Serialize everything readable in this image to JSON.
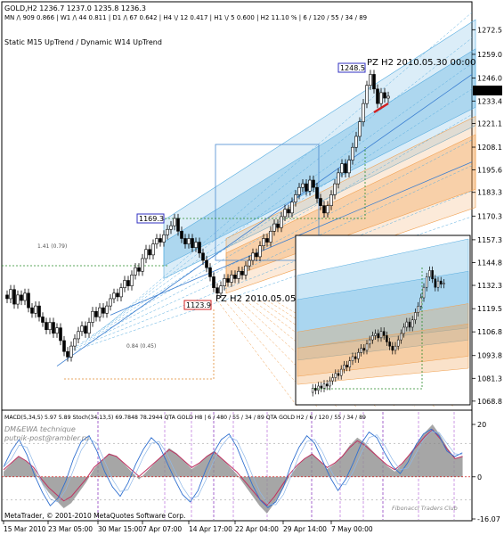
{
  "header": {
    "line1": "GOLD,H2  1236.7 1237.0 1235.8 1236.3",
    "line2": "MN /\\ 909  0.866 | W1 /\\ 44  0.811 | D1 /\\ 67  0.642 | H4 \\/ 12  0.417 | H1 \\/ 5  0.600 | H2  11.10 % | 6 / 120 / 55 / 34 / 89",
    "line3": "Static  M15  UpTrend  /  Dynamic  W14  UpTrend"
  },
  "price_tags": {
    "high": "1248.5",
    "mid": "1169.3",
    "low": "1123.9",
    "current": "1236.3"
  },
  "pz_labels": {
    "upper": "PZ H2  2010.05.30 00:00",
    "lower": "PZ H2  2010.05.05"
  },
  "fib_labels": {
    "upper": "1.41 (0.79)",
    "lower": "0.84 (0.45)"
  },
  "indicator_header": "MACD(5,34,5) 5.97 5.89  Stoch(34,13,5) 69.7848 78.2944  QTA GOLD H8 | 6 / 480 / 55 / 34 / 89  QTA GOLD H2 / 6 / 120 / 55 / 34 / 89",
  "watermark": {
    "line1": "DM&EWA technique",
    "line2": "putnik-post@rambler.ru",
    "footer": "MetaTrader, © 2001-2010 MetaQuotes Software Corp.",
    "club": "Fibonacci Traders Club"
  },
  "colors": {
    "up_candle": "#000000",
    "channel_blue": "#5aaee0",
    "channel_orange": "#f0a050",
    "tag_blue": "#3030c0",
    "tag_red": "#d02020",
    "macd_fill": "#909090",
    "stoch_line": "#3070d0"
  },
  "chart_data": {
    "type": "candlestick",
    "symbol": "GOLD",
    "timeframe": "H2",
    "price_axis": {
      "ticks": [
        1272.5,
        1259.0,
        1246.0,
        1233.4,
        1221.1,
        1208.1,
        1195.6,
        1183.3,
        1170.3,
        1157.3,
        1144.8,
        1132.3,
        1119.5,
        1106.8,
        1093.8,
        1081.3,
        1068.8
      ],
      "ylim": [
        1065.8,
        1280
      ]
    },
    "time_axis": {
      "labels": [
        "15 Mar 2010",
        "23 Mar 05:00",
        "30 Mar 15:00",
        "7 Apr 07:00",
        "14 Apr 17:00",
        "22 Apr 04:00",
        "29 Apr 14:00",
        "7 May 00:00"
      ]
    },
    "price_path": [
      [
        0,
        1127
      ],
      [
        4,
        1125
      ],
      [
        8,
        1130
      ],
      [
        12,
        1122
      ],
      [
        16,
        1127
      ],
      [
        20,
        1124
      ],
      [
        24,
        1128
      ],
      [
        28,
        1120
      ],
      [
        32,
        1117
      ],
      [
        36,
        1121
      ],
      [
        40,
        1115
      ],
      [
        44,
        1112
      ],
      [
        48,
        1108
      ],
      [
        52,
        1112
      ],
      [
        56,
        1106
      ],
      [
        60,
        1109
      ],
      [
        64,
        1102
      ],
      [
        68,
        1096
      ],
      [
        72,
        1093
      ],
      [
        76,
        1099
      ],
      [
        80,
        1103
      ],
      [
        84,
        1107
      ],
      [
        88,
        1110
      ],
      [
        92,
        1106
      ],
      [
        96,
        1112
      ],
      [
        100,
        1118
      ],
      [
        104,
        1115
      ],
      [
        108,
        1120
      ],
      [
        112,
        1117
      ],
      [
        116,
        1121
      ],
      [
        120,
        1125
      ],
      [
        124,
        1128
      ],
      [
        128,
        1126
      ],
      [
        132,
        1131
      ],
      [
        136,
        1135
      ],
      [
        140,
        1132
      ],
      [
        144,
        1138
      ],
      [
        148,
        1142
      ],
      [
        152,
        1140
      ],
      [
        156,
        1147
      ],
      [
        160,
        1152
      ],
      [
        164,
        1149
      ],
      [
        168,
        1155
      ],
      [
        172,
        1158
      ],
      [
        176,
        1156
      ],
      [
        180,
        1160
      ],
      [
        184,
        1163
      ],
      [
        188,
        1165
      ],
      [
        192,
        1169
      ],
      [
        196,
        1162
      ],
      [
        200,
        1158
      ],
      [
        204,
        1155
      ],
      [
        208,
        1158
      ],
      [
        212,
        1153
      ],
      [
        216,
        1156
      ],
      [
        220,
        1150
      ],
      [
        224,
        1146
      ],
      [
        228,
        1142
      ],
      [
        232,
        1137
      ],
      [
        236,
        1131
      ],
      [
        240,
        1128
      ],
      [
        244,
        1132
      ],
      [
        248,
        1136
      ],
      [
        252,
        1134
      ],
      [
        256,
        1138
      ],
      [
        260,
        1136
      ],
      [
        264,
        1140
      ],
      [
        268,
        1138
      ],
      [
        272,
        1143
      ],
      [
        276,
        1146
      ],
      [
        280,
        1150
      ],
      [
        284,
        1148
      ],
      [
        288,
        1154
      ],
      [
        292,
        1158
      ],
      [
        296,
        1156
      ],
      [
        300,
        1162
      ],
      [
        304,
        1166
      ],
      [
        308,
        1164
      ],
      [
        312,
        1170
      ],
      [
        316,
        1174
      ],
      [
        320,
        1172
      ],
      [
        324,
        1178
      ],
      [
        328,
        1182
      ],
      [
        332,
        1186
      ],
      [
        336,
        1188
      ],
      [
        340,
        1184
      ],
      [
        344,
        1190
      ],
      [
        348,
        1186
      ],
      [
        352,
        1180
      ],
      [
        356,
        1176
      ],
      [
        360,
        1172
      ],
      [
        364,
        1176
      ],
      [
        368,
        1182
      ],
      [
        372,
        1188
      ],
      [
        376,
        1194
      ],
      [
        380,
        1199
      ],
      [
        384,
        1194
      ],
      [
        388,
        1201
      ],
      [
        392,
        1208
      ],
      [
        396,
        1214
      ],
      [
        400,
        1222
      ],
      [
        404,
        1232
      ],
      [
        408,
        1242
      ],
      [
        412,
        1248
      ],
      [
        416,
        1240
      ],
      [
        420,
        1232
      ],
      [
        424,
        1238
      ],
      [
        428,
        1235
      ],
      [
        432,
        1236
      ]
    ],
    "bands": [
      {
        "name": "blue-inner",
        "kind": "blue",
        "x": [
          180,
          530
        ],
        "lo": [
          1143,
          1230
        ],
        "hi": [
          1156,
          1262
        ]
      },
      {
        "name": "blue-outer",
        "kind": "blue",
        "x": [
          180,
          530
        ],
        "lo": [
          1136,
          1220
        ],
        "hi": [
          1168,
          1278
        ]
      },
      {
        "name": "orange-inner",
        "kind": "orange",
        "x": [
          250,
          530
        ],
        "lo": [
          1136,
          1185
        ],
        "hi": [
          1150,
          1215
        ]
      },
      {
        "name": "orange-outer",
        "kind": "orange",
        "x": [
          250,
          530
        ],
        "lo": [
          1128,
          1175
        ],
        "hi": [
          1158,
          1225
        ]
      }
    ],
    "macd": {
      "range": [
        -16.07,
        20
      ],
      "ticks": [
        20,
        0.0,
        -16.07
      ],
      "values": [
        2,
        5,
        8,
        6,
        3,
        -2,
        -6,
        -9,
        -12,
        -10,
        -6,
        -2,
        3,
        6,
        9,
        8,
        5,
        2,
        -1,
        2,
        5,
        8,
        11,
        9,
        6,
        3,
        5,
        8,
        10,
        7,
        4,
        1,
        -3,
        -7,
        -11,
        -14,
        -10,
        -5,
        0,
        4,
        7,
        9,
        6,
        3,
        5,
        8,
        12,
        15,
        13,
        10,
        7,
        4,
        2,
        5,
        9,
        13,
        17,
        20,
        16,
        11,
        7,
        8
      ]
    },
    "stoch": {
      "range": [
        0,
        100
      ],
      "ticks": [
        80,
        20
      ],
      "values": [
        55,
        72,
        84,
        68,
        46,
        28,
        14,
        22,
        40,
        64,
        82,
        88,
        72,
        50,
        34,
        24,
        38,
        58,
        74,
        86,
        78,
        60,
        42,
        26,
        18,
        30,
        52,
        70,
        84,
        90,
        76,
        56,
        36,
        20,
        12,
        18,
        34,
        58,
        76,
        88,
        80,
        62,
        44,
        30,
        42,
        60,
        80,
        92,
        86,
        70,
        56,
        48,
        60,
        78,
        90,
        95,
        88,
        72,
        66,
        70
      ]
    }
  }
}
